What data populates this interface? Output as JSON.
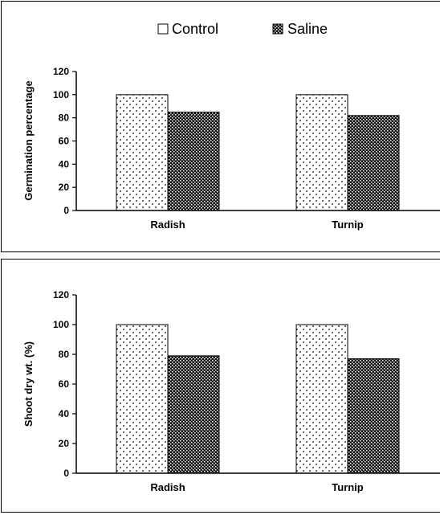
{
  "legend": [
    {
      "label": "Control",
      "pattern": "dots"
    },
    {
      "label": "Saline",
      "pattern": "checker"
    }
  ],
  "colors": {
    "frame": "#000000",
    "control_fill": "#ffffff",
    "saline_fill": "#222222",
    "axis": "#000000"
  },
  "chart_data": [
    {
      "type": "bar",
      "categories": [
        "Radish",
        "Turnip"
      ],
      "series": [
        {
          "name": "Control",
          "values": [
            100,
            100
          ]
        },
        {
          "name": "Saline",
          "values": [
            85,
            82
          ]
        }
      ],
      "ylabel": "Germination percentage",
      "ylim": [
        0,
        120
      ],
      "yticks": [
        0,
        20,
        40,
        60,
        80,
        100,
        120
      ],
      "grid": false,
      "legend_position": "top"
    },
    {
      "type": "bar",
      "categories": [
        "Radish",
        "Turnip"
      ],
      "series": [
        {
          "name": "Control",
          "values": [
            100,
            100
          ]
        },
        {
          "name": "Saline",
          "values": [
            79,
            77
          ]
        }
      ],
      "ylabel": "Shoot dry wt. (%)",
      "ylim": [
        0,
        120
      ],
      "yticks": [
        0,
        20,
        40,
        60,
        80,
        100,
        120
      ],
      "grid": false
    }
  ]
}
